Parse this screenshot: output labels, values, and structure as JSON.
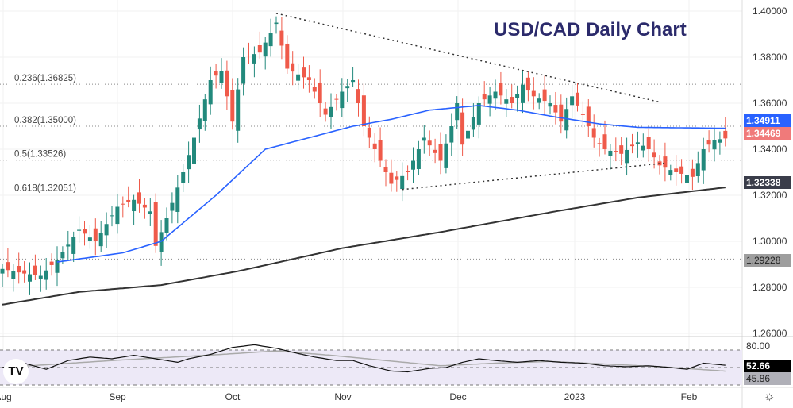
{
  "title": "USD/CAD Daily Chart",
  "price_axis": [
    "1.40000",
    "1.38000",
    "1.36000",
    "1.34000",
    "1.32000",
    "1.30000",
    "1.28000",
    "1.26000"
  ],
  "time_axis": [
    "Aug",
    "Sep",
    "Oct",
    "Nov",
    "Dec",
    "2023",
    "Feb"
  ],
  "tags": {
    "ma50": "1.34911",
    "last": "1.34469",
    "ma200": "1.32338",
    "level": "1.29228",
    "rsi": "52.66",
    "rsi_ma": "45.86",
    "rsi_top": "80.00"
  },
  "fib_labels": [
    "0.236(1.36825)",
    "0.382(1.35000)",
    "0.5(1.33526)",
    "0.618(1.32051)"
  ],
  "colors": {
    "up": "#22897c",
    "down": "#ef5a4a",
    "ma50": "#2962ff",
    "ma200": "#333333",
    "title": "#2b2a6b"
  },
  "chart_data": {
    "type": "candlestick",
    "title": "USD/CAD Daily Chart",
    "ylim": [
      1.26,
      1.4
    ],
    "fib_levels": [
      1.36825,
      1.35,
      1.33526,
      1.32051
    ],
    "close_keypoints": [
      [
        0,
        1.288
      ],
      [
        4,
        1.286
      ],
      [
        7,
        1.285
      ],
      [
        10,
        1.292
      ],
      [
        14,
        1.305
      ],
      [
        17,
        1.3
      ],
      [
        21,
        1.315
      ],
      [
        24,
        1.318
      ],
      [
        27,
        1.313
      ],
      [
        28,
        1.298
      ],
      [
        30,
        1.31
      ],
      [
        33,
        1.33
      ],
      [
        35,
        1.345
      ],
      [
        38,
        1.37
      ],
      [
        40,
        1.374
      ],
      [
        42,
        1.352
      ],
      [
        44,
        1.38
      ],
      [
        47,
        1.382
      ],
      [
        50,
        1.395
      ],
      [
        52,
        1.375
      ],
      [
        56,
        1.37
      ],
      [
        59,
        1.355
      ],
      [
        62,
        1.365
      ],
      [
        64,
        1.37
      ],
      [
        66,
        1.35
      ],
      [
        68,
        1.34
      ],
      [
        71,
        1.325
      ],
      [
        74,
        1.33
      ],
      [
        77,
        1.345
      ],
      [
        80,
        1.335
      ],
      [
        82,
        1.35
      ],
      [
        83,
        1.36
      ],
      [
        84,
        1.342
      ],
      [
        87,
        1.36
      ],
      [
        90,
        1.365
      ],
      [
        93,
        1.36
      ],
      [
        95,
        1.368
      ],
      [
        97,
        1.363
      ],
      [
        100,
        1.36
      ],
      [
        102,
        1.352
      ],
      [
        104,
        1.363
      ],
      [
        106,
        1.355
      ],
      [
        108,
        1.345
      ],
      [
        110,
        1.34
      ],
      [
        113,
        1.338
      ],
      [
        116,
        1.343
      ],
      [
        118,
        1.34
      ],
      [
        120,
        1.333
      ],
      [
        123,
        1.33
      ],
      [
        126,
        1.328
      ],
      [
        128,
        1.34
      ],
      [
        130,
        1.344
      ],
      [
        132,
        1.3447
      ]
    ],
    "ma50": [
      [
        10,
        1.291
      ],
      [
        22,
        1.295
      ],
      [
        29,
        1.3
      ],
      [
        39,
        1.32
      ],
      [
        48,
        1.34
      ],
      [
        64,
        1.35
      ],
      [
        71,
        1.353
      ],
      [
        78,
        1.357
      ],
      [
        87,
        1.359
      ],
      [
        94,
        1.357
      ],
      [
        101,
        1.354
      ],
      [
        109,
        1.351
      ],
      [
        116,
        1.3495
      ],
      [
        132,
        1.3491
      ]
    ],
    "ma200": [
      [
        0,
        1.2725
      ],
      [
        14,
        1.278
      ],
      [
        29,
        1.281
      ],
      [
        43,
        1.287
      ],
      [
        62,
        1.297
      ],
      [
        80,
        1.304
      ],
      [
        101,
        1.313
      ],
      [
        116,
        1.319
      ],
      [
        132,
        1.3234
      ]
    ],
    "trendlines": [
      {
        "from": [
          50,
          1.399
        ],
        "to": [
          120,
          1.3605
        ]
      },
      {
        "from": [
          73,
          1.3225
        ],
        "to": [
          121,
          1.334
        ]
      }
    ],
    "rsi": [
      [
        0,
        50
      ],
      [
        4,
        55
      ],
      [
        8,
        48
      ],
      [
        12,
        58
      ],
      [
        16,
        62
      ],
      [
        20,
        60
      ],
      [
        24,
        64
      ],
      [
        27,
        61
      ],
      [
        30,
        58
      ],
      [
        32,
        56
      ],
      [
        34,
        60
      ],
      [
        38,
        65
      ],
      [
        42,
        73
      ],
      [
        46,
        76
      ],
      [
        50,
        72
      ],
      [
        54,
        66
      ],
      [
        57,
        62
      ],
      [
        61,
        58
      ],
      [
        64,
        58
      ],
      [
        67,
        52
      ],
      [
        71,
        46
      ],
      [
        74,
        45
      ],
      [
        78,
        49
      ],
      [
        81,
        50
      ],
      [
        84,
        56
      ],
      [
        87,
        60
      ],
      [
        90,
        58
      ],
      [
        94,
        56
      ],
      [
        98,
        58
      ],
      [
        102,
        56
      ],
      [
        106,
        55
      ],
      [
        110,
        52
      ],
      [
        114,
        51
      ],
      [
        118,
        52
      ],
      [
        122,
        50
      ],
      [
        125,
        48
      ],
      [
        128,
        55
      ],
      [
        132,
        52.66
      ]
    ],
    "rsi_ma": [
      [
        0,
        50
      ],
      [
        20,
        58
      ],
      [
        40,
        65
      ],
      [
        50,
        69
      ],
      [
        60,
        64
      ],
      [
        70,
        58
      ],
      [
        80,
        52
      ],
      [
        90,
        55
      ],
      [
        100,
        57
      ],
      [
        110,
        54
      ],
      [
        120,
        51
      ],
      [
        132,
        45.86
      ]
    ],
    "rsi_bands": [
      70,
      50,
      30
    ]
  }
}
